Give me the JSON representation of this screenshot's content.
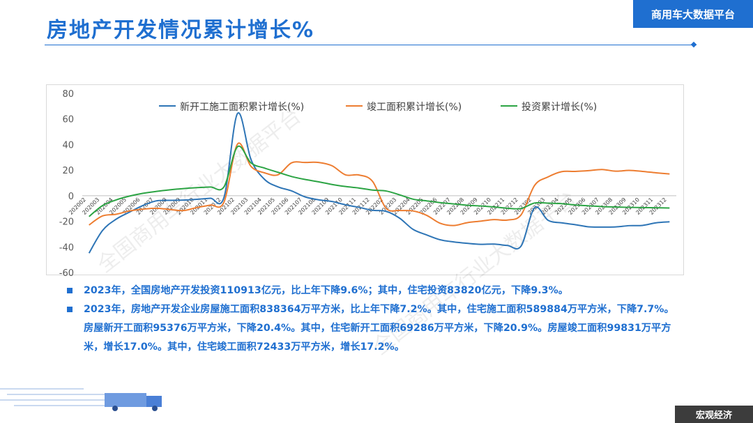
{
  "page": {
    "title": "房地产开发情况累计增长%",
    "brand": "商用车大数据平台",
    "footer_tag": "宏观经济",
    "watermark": "全国商用车行业大数据平台"
  },
  "notes": [
    "2023年，全国房地产开发投资110913亿元，比上年下降9.6%；其中，住宅投资83820亿元，下降9.3%。",
    "2023年，房地产开发企业房屋施工面积838364万平方米，比上年下降7.2%。其中，住宅施工面积589884万平方米，下降7.7%。房屋新开工面积95376万平方米，下降20.4%。其中，住宅新开工面积69286万平方米，下降20.9%。房屋竣工面积99831万平方米，增长17.0%。其中，住宅竣工面积72433万平方米，增长17.2%。"
  ],
  "chart_data": {
    "type": "line",
    "title": "",
    "xlabel": "",
    "ylabel": "",
    "ylim": [
      -60,
      80
    ],
    "yticks": [
      -60,
      -40,
      -20,
      0,
      20,
      40,
      60,
      80
    ],
    "grid": false,
    "legend_position": "top",
    "categories": [
      "2020-02",
      "2020-03",
      "2020-04",
      "2020-05",
      "2020-06",
      "2020-07",
      "2020-08",
      "2020-09",
      "2020-10",
      "2020-11",
      "2020-12",
      "2021-02",
      "2021-03",
      "2021-04",
      "2021-05",
      "2021-06",
      "2021-07",
      "2021-08",
      "2021-09",
      "2021-10",
      "2021-11",
      "2021-12",
      "2022-02",
      "2022-03",
      "2022-04",
      "2022-05",
      "2022-06",
      "2022-07",
      "2022-08",
      "2022-09",
      "2022-10",
      "2022-11",
      "2022-12",
      "2023-02",
      "2023-03",
      "2023-04",
      "2023-05",
      "2023-06",
      "2023-07",
      "2023-08",
      "2023-09",
      "2023-10",
      "2023-11",
      "2023-12"
    ],
    "tick_labels": [
      "202002",
      "202003",
      "202004",
      "202005",
      "202006",
      "202007",
      "202008",
      "202009",
      "202010",
      "202011",
      "202012",
      "202102",
      "202103",
      "202104",
      "202105",
      "202106",
      "202107",
      "202108",
      "202109",
      "202110",
      "202111",
      "202112",
      "202202",
      "202203",
      "202204",
      "202205",
      "202206",
      "202207",
      "202208",
      "202209",
      "202210",
      "202211",
      "202212",
      "202302",
      "202303",
      "202304",
      "202305",
      "202306",
      "202307",
      "202308",
      "202309",
      "202310",
      "202311",
      "202312"
    ],
    "series": [
      {
        "name": "新开工施工面积累计增长(%)",
        "color": "#2e75b6",
        "values": [
          -44.9,
          -27.2,
          -18.4,
          -12.8,
          -7.6,
          -4.0,
          -3.6,
          -3.4,
          -2.8,
          -2.0,
          -1.2,
          64.3,
          28.2,
          12.8,
          6.9,
          3.8,
          -0.9,
          -3.2,
          -4.5,
          -7.1,
          -9.1,
          -11.4,
          -12.2,
          -17.5,
          -26.3,
          -30.6,
          -34.4,
          -36.1,
          -37.2,
          -38.0,
          -37.8,
          -38.9,
          -39.4,
          -9.4,
          -19.2,
          -21.2,
          -22.6,
          -24.3,
          -24.5,
          -24.4,
          -23.4,
          -23.2,
          -21.2,
          -20.4
        ]
      },
      {
        "name": "竣工面积累计增长(%)",
        "color": "#ed7d31",
        "values": [
          -22.9,
          -15.8,
          -14.5,
          -11.9,
          -10.5,
          -9.8,
          -10.8,
          -11.6,
          -9.2,
          -7.3,
          -4.9,
          40.4,
          22.9,
          17.9,
          16.4,
          25.7,
          26.0,
          26.0,
          23.4,
          16.3,
          16.2,
          11.2,
          -9.8,
          -11.5,
          -11.9,
          -15.3,
          -21.5,
          -23.3,
          -21.1,
          -19.9,
          -18.7,
          -19.0,
          -15.0,
          8.0,
          14.7,
          18.8,
          19.0,
          19.6,
          20.5,
          19.2,
          19.8,
          19.0,
          17.9,
          17.0
        ]
      },
      {
        "name": "投资累计增长(%)",
        "color": "#2ca444",
        "values": [
          -16.3,
          -7.7,
          -3.3,
          -0.3,
          1.9,
          3.4,
          4.6,
          5.6,
          6.3,
          6.8,
          7.0,
          38.3,
          25.6,
          21.6,
          18.3,
          15.0,
          12.7,
          10.9,
          8.8,
          7.2,
          6.0,
          4.4,
          3.7,
          0.7,
          -2.7,
          -4.0,
          -5.4,
          -6.4,
          -7.4,
          -8.0,
          -8.8,
          -9.8,
          -10.0,
          -5.7,
          -5.8,
          -6.2,
          -7.2,
          -7.9,
          -8.5,
          -8.8,
          -9.1,
          -9.3,
          -9.4,
          -9.6
        ]
      }
    ]
  },
  "colors": {
    "accent": "#1f6fd0",
    "dark": "#3c3c3c"
  },
  "icons": {
    "bullet": "square-bullet-icon",
    "decor": "truck-decoration-icon"
  }
}
